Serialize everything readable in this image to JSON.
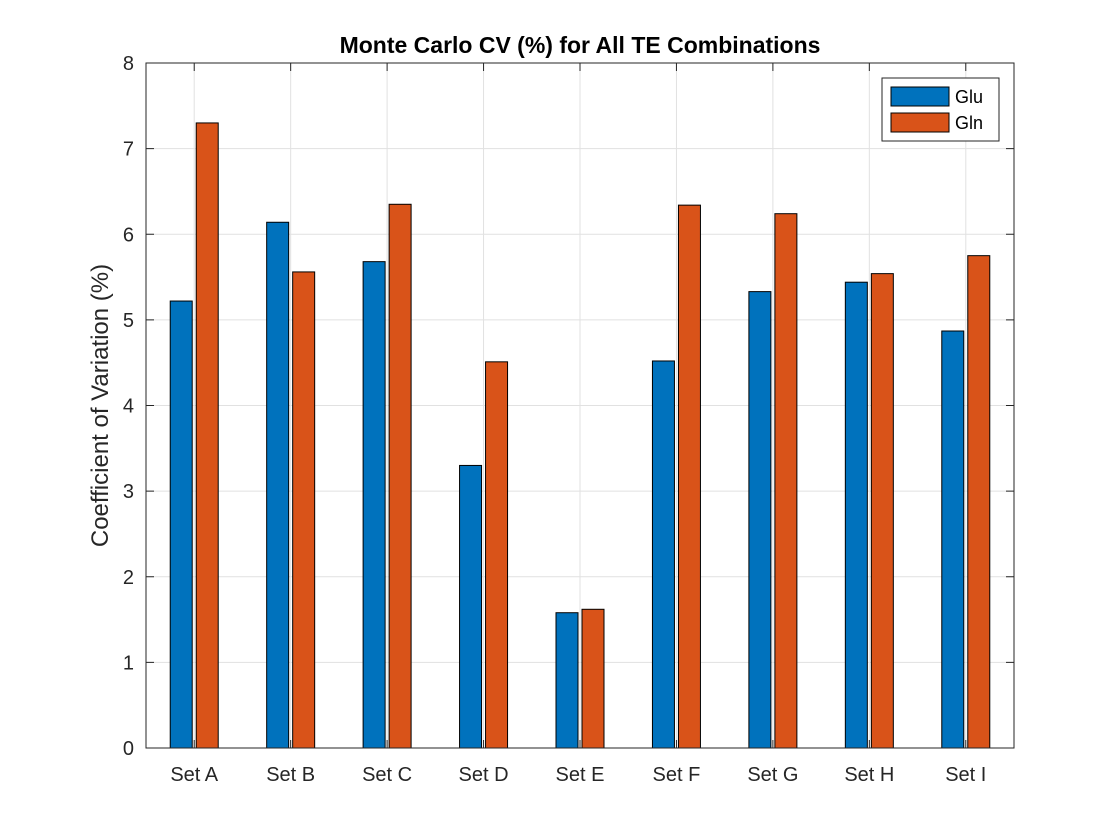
{
  "chart_data": {
    "type": "bar",
    "title": "Monte Carlo CV (%) for All TE Combinations",
    "xlabel": "",
    "ylabel": "Coefficient of Variation (%)",
    "categories": [
      "Set A",
      "Set B",
      "Set C",
      "Set D",
      "Set E",
      "Set F",
      "Set G",
      "Set H",
      "Set I"
    ],
    "series": [
      {
        "name": "Glu",
        "color": "#0072BD",
        "values": [
          5.22,
          6.14,
          5.68,
          3.3,
          1.58,
          4.52,
          5.33,
          5.44,
          4.87
        ]
      },
      {
        "name": "Gln",
        "color": "#D95319",
        "values": [
          7.3,
          5.56,
          6.35,
          4.51,
          1.62,
          6.34,
          6.24,
          5.54,
          5.75
        ]
      }
    ],
    "ylim": [
      0,
      8
    ],
    "yticks": [
      0,
      1,
      2,
      3,
      4,
      5,
      6,
      7,
      8
    ],
    "grid": true,
    "legend_position": "top-right"
  }
}
